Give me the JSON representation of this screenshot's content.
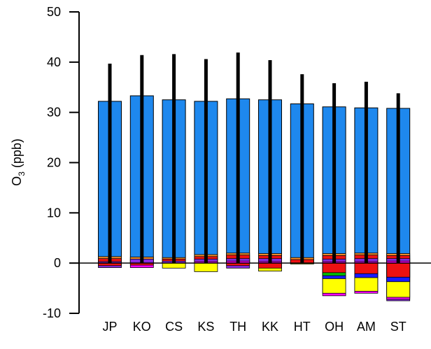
{
  "chart_data": {
    "type": "bar",
    "subtype": "stacked-with-error-bars",
    "title": "",
    "xlabel": "",
    "ylabel": {
      "prefix": "O",
      "subscript": "3",
      "suffix": " (ppb)"
    },
    "ylim": [
      -10,
      50
    ],
    "yticks": [
      "-10",
      "0",
      "10",
      "20",
      "30",
      "40",
      "50"
    ],
    "grid": false,
    "zero_line": true,
    "categories": [
      "JP",
      "KO",
      "CS",
      "KS",
      "TH",
      "KK",
      "HT",
      "OH",
      "AM",
      "ST"
    ],
    "colors": {
      "main": "#1e88ee",
      "orange": "#f28c28",
      "red": "#ee1111",
      "purple": "#8a2be2",
      "magenta": "#ff00ff",
      "blue": "#1a1aff",
      "green": "#00c000",
      "yellow": "#ffff00",
      "error": "#000000",
      "edge": "#000000"
    },
    "series": [
      {
        "values": [
          32.2,
          33.3,
          32.5,
          32.2,
          32.7,
          32.5,
          31.7,
          31.1,
          30.9,
          30.8
        ],
        "error_upper": [
          39.7,
          41.4,
          41.6,
          40.6,
          41.9,
          40.4,
          37.6,
          35.8,
          36.1,
          33.8
        ]
      }
    ],
    "positive_segments": [
      [
        {
          "c": "orange",
          "v": 1.3
        },
        {
          "c": "red",
          "v": 0.9
        },
        {
          "c": "purple",
          "v": 0.3
        }
      ],
      [
        {
          "c": "orange",
          "v": 1.2
        },
        {
          "c": "purple",
          "v": 0.8
        }
      ],
      [
        {
          "c": "orange",
          "v": 1.1
        },
        {
          "c": "red",
          "v": 0.8
        },
        {
          "c": "purple",
          "v": 0.4
        }
      ],
      [
        {
          "c": "orange",
          "v": 1.7
        },
        {
          "c": "red",
          "v": 1.3
        },
        {
          "c": "purple",
          "v": 0.8
        },
        {
          "c": "magenta",
          "v": 0.3
        }
      ],
      [
        {
          "c": "orange",
          "v": 2.0
        },
        {
          "c": "red",
          "v": 1.6
        },
        {
          "c": "purple",
          "v": 0.9
        },
        {
          "c": "magenta",
          "v": 0.4
        }
      ],
      [
        {
          "c": "orange",
          "v": 1.9
        },
        {
          "c": "red",
          "v": 1.5
        },
        {
          "c": "purple",
          "v": 0.9
        },
        {
          "c": "magenta",
          "v": 0.3
        }
      ],
      [
        {
          "c": "orange",
          "v": 1.1
        },
        {
          "c": "red",
          "v": 0.7
        }
      ],
      [
        {
          "c": "orange",
          "v": 1.9
        },
        {
          "c": "red",
          "v": 1.5
        },
        {
          "c": "purple",
          "v": 0.8
        },
        {
          "c": "magenta",
          "v": 0.3
        }
      ],
      [
        {
          "c": "orange",
          "v": 2.0
        },
        {
          "c": "red",
          "v": 1.6
        },
        {
          "c": "purple",
          "v": 0.9
        },
        {
          "c": "magenta",
          "v": 0.3
        }
      ],
      [
        {
          "c": "orange",
          "v": 1.9
        },
        {
          "c": "red",
          "v": 1.5
        },
        {
          "c": "purple",
          "v": 0.9
        },
        {
          "c": "magenta",
          "v": 0.4
        }
      ]
    ],
    "negative_segments": [
      [
        {
          "c": "red",
          "v": -0.5
        },
        {
          "c": "purple",
          "v": -0.9
        }
      ],
      [
        {
          "c": "red",
          "v": -0.4
        },
        {
          "c": "magenta",
          "v": -0.9
        }
      ],
      [
        {
          "c": "yellow",
          "v": -1.0
        }
      ],
      [
        {
          "c": "yellow",
          "v": -1.7
        }
      ],
      [
        {
          "c": "red",
          "v": -0.5
        },
        {
          "c": "purple",
          "v": -1.0
        }
      ],
      [
        {
          "c": "red",
          "v": -1.0
        },
        {
          "c": "yellow",
          "v": -1.6
        }
      ],
      [
        {
          "c": "yellow",
          "v": -0.2
        }
      ],
      [
        {
          "c": "red",
          "v": -1.9
        },
        {
          "c": "green",
          "v": -2.5
        },
        {
          "c": "blue",
          "v": -3.1
        },
        {
          "c": "yellow",
          "v": -6.0
        },
        {
          "c": "magenta",
          "v": -6.5
        }
      ],
      [
        {
          "c": "red",
          "v": -2.1
        },
        {
          "c": "blue",
          "v": -2.9
        },
        {
          "c": "yellow",
          "v": -5.6
        },
        {
          "c": "magenta",
          "v": -6.0
        }
      ],
      [
        {
          "c": "red",
          "v": -2.8
        },
        {
          "c": "blue",
          "v": -3.7
        },
        {
          "c": "yellow",
          "v": -6.8
        },
        {
          "c": "magenta",
          "v": -7.2
        },
        {
          "c": "purple",
          "v": -7.5
        }
      ]
    ]
  }
}
